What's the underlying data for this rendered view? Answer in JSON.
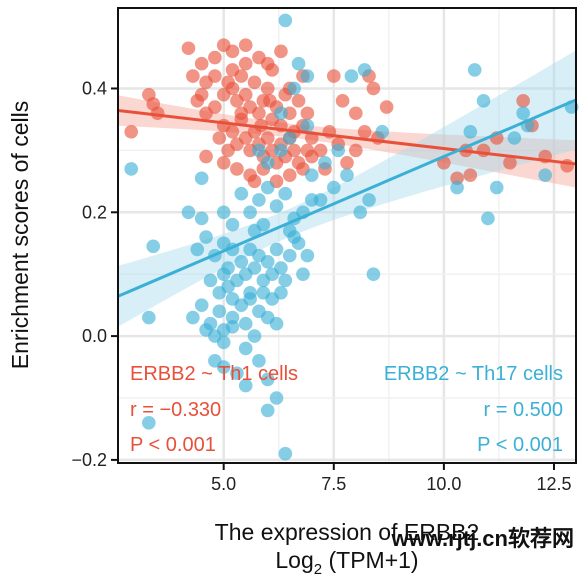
{
  "chart_data": {
    "type": "scatter",
    "xlabel": "The expression of ERBB2",
    "xlabel_line2_main": "Log",
    "xlabel_line2_sub": "2",
    "xlabel_line2_rest": " (TPM+1)",
    "ylabel": "Enrichment scores of cells",
    "xlim": [
      2.6,
      13.0
    ],
    "ylim": [
      -0.205,
      0.53
    ],
    "x_ticks": [
      5.0,
      7.5,
      10.0,
      12.5
    ],
    "x_tick_labels": [
      "5.0",
      "7.5",
      "10.0",
      "12.5"
    ],
    "y_ticks": [
      -0.2,
      0.0,
      0.2,
      0.4
    ],
    "y_tick_labels": [
      "−0.2",
      "0.0",
      "0.2",
      "0.4"
    ],
    "grid": true,
    "series": [
      {
        "color": "#e8503a",
        "band_color": "#f4a898",
        "fit": {
          "intercept": 0.386,
          "slope": -0.0083
        },
        "annotation": {
          "formula": "ERBB2 ~ Th1 cells",
          "r": "r = −0.330",
          "p": "P < 0.001",
          "align": "left"
        },
        "points": [
          [
            2.9,
            0.33
          ],
          [
            3.3,
            0.39
          ],
          [
            3.5,
            0.36
          ],
          [
            3.4,
            0.375
          ],
          [
            4.2,
            0.465
          ],
          [
            4.5,
            0.44
          ],
          [
            4.3,
            0.42
          ],
          [
            4.6,
            0.41
          ],
          [
            4.8,
            0.45
          ],
          [
            5.0,
            0.47
          ],
          [
            5.2,
            0.46
          ],
          [
            5.5,
            0.47
          ],
          [
            5.8,
            0.45
          ],
          [
            6.1,
            0.43
          ],
          [
            6.3,
            0.46
          ],
          [
            4.4,
            0.38
          ],
          [
            4.6,
            0.36
          ],
          [
            4.8,
            0.37
          ],
          [
            5.0,
            0.39
          ],
          [
            5.1,
            0.41
          ],
          [
            5.2,
            0.4
          ],
          [
            5.3,
            0.38
          ],
          [
            5.4,
            0.42
          ],
          [
            5.5,
            0.39
          ],
          [
            5.6,
            0.37
          ],
          [
            5.7,
            0.41
          ],
          [
            5.8,
            0.36
          ],
          [
            5.9,
            0.38
          ],
          [
            6.0,
            0.4
          ],
          [
            6.1,
            0.35
          ],
          [
            6.2,
            0.37
          ],
          [
            6.3,
            0.34
          ],
          [
            6.4,
            0.39
          ],
          [
            6.5,
            0.36
          ],
          [
            6.6,
            0.33
          ],
          [
            6.7,
            0.38
          ],
          [
            6.8,
            0.34
          ],
          [
            6.9,
            0.36
          ],
          [
            7.0,
            0.32
          ],
          [
            4.9,
            0.32
          ],
          [
            5.0,
            0.34
          ],
          [
            5.1,
            0.3
          ],
          [
            5.2,
            0.33
          ],
          [
            5.3,
            0.31
          ],
          [
            5.4,
            0.35
          ],
          [
            5.5,
            0.32
          ],
          [
            5.6,
            0.3
          ],
          [
            5.7,
            0.33
          ],
          [
            5.8,
            0.31
          ],
          [
            5.9,
            0.29
          ],
          [
            6.0,
            0.32
          ],
          [
            6.1,
            0.3
          ],
          [
            6.2,
            0.28
          ],
          [
            6.3,
            0.31
          ],
          [
            6.4,
            0.29
          ],
          [
            6.5,
            0.32
          ],
          [
            6.6,
            0.3
          ],
          [
            6.7,
            0.28
          ],
          [
            5.3,
            0.27
          ],
          [
            5.6,
            0.26
          ],
          [
            5.9,
            0.27
          ],
          [
            6.2,
            0.25
          ],
          [
            6.5,
            0.26
          ],
          [
            6.8,
            0.27
          ],
          [
            7.0,
            0.29
          ],
          [
            7.2,
            0.3
          ],
          [
            7.4,
            0.33
          ],
          [
            7.6,
            0.31
          ],
          [
            7.8,
            0.28
          ],
          [
            8.0,
            0.3
          ],
          [
            8.2,
            0.33
          ],
          [
            8.5,
            0.32
          ],
          [
            8.4,
            0.4
          ],
          [
            8.7,
            0.37
          ],
          [
            8.3,
            0.42
          ],
          [
            7.5,
            0.42
          ],
          [
            7.7,
            0.38
          ],
          [
            8.0,
            0.36
          ],
          [
            6.0,
            0.44
          ],
          [
            5.5,
            0.44
          ],
          [
            5.2,
            0.43
          ],
          [
            4.8,
            0.42
          ],
          [
            4.5,
            0.39
          ],
          [
            6.8,
            0.42
          ],
          [
            6.5,
            0.4
          ],
          [
            10.0,
            0.28
          ],
          [
            10.5,
            0.3
          ],
          [
            10.9,
            0.3
          ],
          [
            10.6,
            0.26
          ],
          [
            11.2,
            0.32
          ],
          [
            11.5,
            0.28
          ],
          [
            11.8,
            0.38
          ],
          [
            12.0,
            0.34
          ],
          [
            12.3,
            0.29
          ],
          [
            12.8,
            0.275
          ],
          [
            10.3,
            0.255
          ],
          [
            5.0,
            0.28
          ],
          [
            4.6,
            0.29
          ],
          [
            5.7,
            0.25
          ],
          [
            6.9,
            0.3
          ],
          [
            7.3,
            0.27
          ],
          [
            5.4,
            0.36
          ],
          [
            6.05,
            0.38
          ],
          [
            5.85,
            0.34
          ]
        ]
      },
      {
        "color": "#3ab0d6",
        "band_color": "#a9dcee",
        "fit": {
          "intercept": -0.015,
          "slope": 0.0305
        },
        "annotation": {
          "formula": "ERBB2 ~ Th17 cells",
          "r": "r = 0.500",
          "p": "P < 0.001",
          "align": "right"
        },
        "points": [
          [
            2.9,
            0.27
          ],
          [
            3.4,
            0.145
          ],
          [
            3.3,
            0.03
          ],
          [
            3.3,
            -0.14
          ],
          [
            4.2,
            0.2
          ],
          [
            4.5,
            0.19
          ],
          [
            4.4,
            0.14
          ],
          [
            4.6,
            0.16
          ],
          [
            4.8,
            0.13
          ],
          [
            5.0,
            0.15
          ],
          [
            5.1,
            0.11
          ],
          [
            5.2,
            0.14
          ],
          [
            4.7,
            0.09
          ],
          [
            4.9,
            0.07
          ],
          [
            5.0,
            0.1
          ],
          [
            5.1,
            0.08
          ],
          [
            5.2,
            0.06
          ],
          [
            5.3,
            0.09
          ],
          [
            5.4,
            0.12
          ],
          [
            5.5,
            0.1
          ],
          [
            5.6,
            0.14
          ],
          [
            5.7,
            0.11
          ],
          [
            5.8,
            0.13
          ],
          [
            5.9,
            0.09
          ],
          [
            6.0,
            0.12
          ],
          [
            6.1,
            0.1
          ],
          [
            6.2,
            0.14
          ],
          [
            6.3,
            0.11
          ],
          [
            6.4,
            0.09
          ],
          [
            6.5,
            0.13
          ],
          [
            6.6,
            0.16
          ],
          [
            6.7,
            0.15
          ],
          [
            6.8,
            0.1
          ],
          [
            4.3,
            0.03
          ],
          [
            4.5,
            0.05
          ],
          [
            4.7,
            0.02
          ],
          [
            4.9,
            0.04
          ],
          [
            5.0,
            0.01
          ],
          [
            5.2,
            0.03
          ],
          [
            5.4,
            0.05
          ],
          [
            5.5,
            0.02
          ],
          [
            5.6,
            0.06
          ],
          [
            5.8,
            0.04
          ],
          [
            5.9,
            0.07
          ],
          [
            4.6,
            0.01
          ],
          [
            4.8,
            0.0
          ],
          [
            5.0,
            -0.01
          ],
          [
            5.2,
            0.015
          ],
          [
            5.5,
            -0.02
          ],
          [
            5.7,
            0.0
          ],
          [
            6.0,
            0.03
          ],
          [
            6.2,
            0.02
          ],
          [
            4.8,
            -0.04
          ],
          [
            5.0,
            -0.05
          ],
          [
            5.3,
            -0.06
          ],
          [
            5.5,
            -0.08
          ],
          [
            5.8,
            -0.04
          ],
          [
            6.0,
            -0.07
          ],
          [
            6.2,
            -0.1
          ],
          [
            6.0,
            -0.12
          ],
          [
            6.4,
            -0.19
          ],
          [
            5.6,
            0.2
          ],
          [
            5.8,
            0.22
          ],
          [
            6.0,
            0.24
          ],
          [
            6.2,
            0.21
          ],
          [
            6.4,
            0.23
          ],
          [
            6.6,
            0.19
          ],
          [
            6.8,
            0.2
          ],
          [
            7.0,
            0.22
          ],
          [
            5.7,
            0.17
          ],
          [
            6.5,
            0.17
          ],
          [
            6.9,
            0.13
          ],
          [
            7.2,
            0.22
          ],
          [
            7.5,
            0.24
          ],
          [
            7.8,
            0.26
          ],
          [
            8.1,
            0.2
          ],
          [
            8.3,
            0.22
          ],
          [
            8.4,
            0.1
          ],
          [
            7.6,
            0.3
          ],
          [
            7.3,
            0.28
          ],
          [
            7.0,
            0.26
          ],
          [
            6.9,
            0.34
          ],
          [
            6.5,
            0.32
          ],
          [
            6.3,
            0.3
          ],
          [
            6.0,
            0.28
          ],
          [
            5.8,
            0.3
          ],
          [
            6.6,
            0.4
          ],
          [
            6.9,
            0.42
          ],
          [
            6.7,
            0.44
          ],
          [
            6.4,
            0.51
          ],
          [
            6.3,
            0.36
          ],
          [
            7.9,
            0.42
          ],
          [
            8.2,
            0.43
          ],
          [
            8.6,
            0.33
          ],
          [
            10.7,
            0.43
          ],
          [
            10.9,
            0.38
          ],
          [
            10.6,
            0.33
          ],
          [
            10.3,
            0.24
          ],
          [
            11.0,
            0.19
          ],
          [
            11.2,
            0.24
          ],
          [
            11.9,
            0.34
          ],
          [
            11.8,
            0.36
          ],
          [
            12.3,
            0.26
          ],
          [
            12.9,
            0.37
          ],
          [
            11.6,
            0.32
          ],
          [
            4.5,
            0.255
          ],
          [
            5.0,
            0.2
          ],
          [
            5.4,
            0.23
          ],
          [
            5.2,
            0.18
          ],
          [
            6.1,
            0.06
          ],
          [
            6.3,
            0.07
          ],
          [
            5.6,
            0.07
          ],
          [
            5.9,
            0.18
          ]
        ]
      }
    ]
  },
  "watermark": "www.rjtj.cn软荐网"
}
